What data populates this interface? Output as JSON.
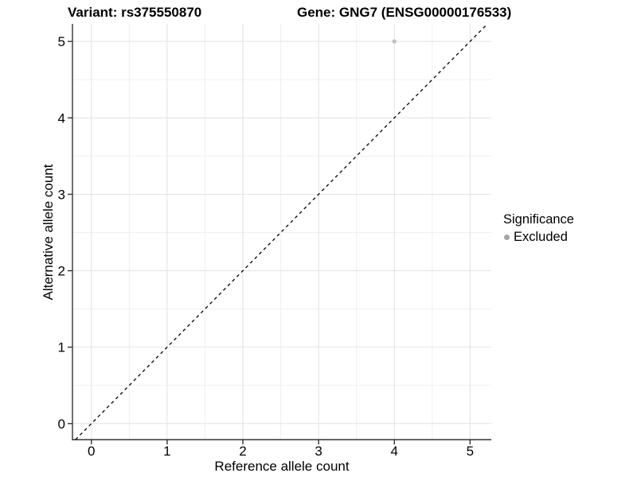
{
  "titles": {
    "left": "Variant: rs375550870",
    "right": "Gene: GNG7 (ENSG00000176533)"
  },
  "legend": {
    "title": "Significance",
    "items": [
      {
        "label": "Excluded",
        "color": "#a6a6a6"
      }
    ]
  },
  "chart_data": {
    "type": "scatter",
    "title": "Variant: rs375550870 — Gene: GNG7 (ENSG00000176533)",
    "xlabel": "Reference allele count",
    "ylabel": "Alternative allele count",
    "xlim": [
      -0.25,
      5.28
    ],
    "ylim": [
      -0.21,
      5.23
    ],
    "xticks": [
      0,
      1,
      2,
      3,
      4,
      5
    ],
    "yticks": [
      0,
      1,
      2,
      3,
      4,
      5
    ],
    "minor_step": 0.5,
    "grid": true,
    "legend_position": "right",
    "series": [
      {
        "name": "Excluded",
        "points": [
          {
            "x": 4,
            "y": 5
          }
        ],
        "color": "#bfbfbf",
        "point_radius": 2.6
      }
    ],
    "identity_line": {
      "equation": "y = x",
      "style": "dashed",
      "from": -0.21,
      "to": 5.23,
      "color": "#000000"
    },
    "colors": {
      "grid_major": "#e2e2e2",
      "grid_minor": "#efefef",
      "axis_line": "#333333",
      "tick_label": "#000000"
    }
  }
}
